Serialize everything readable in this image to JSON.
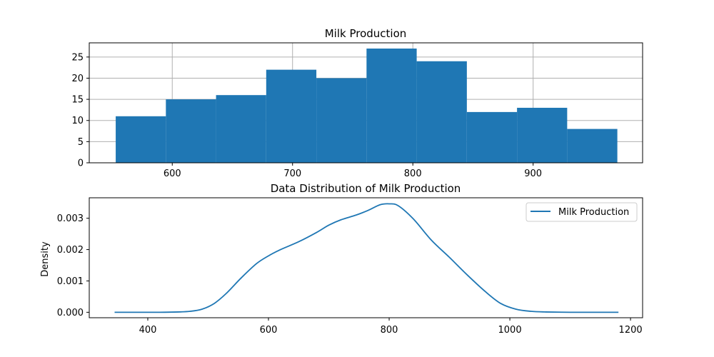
{
  "chart_data": [
    {
      "type": "bar",
      "subtype": "histogram",
      "title": "Milk Production",
      "xlabel": "",
      "ylabel": "",
      "xlim": [
        531,
        991
      ],
      "ylim": [
        0,
        28.35
      ],
      "grid": true,
      "bin_edges": [
        553,
        594.7,
        636.4,
        678.1,
        719.8,
        761.5,
        803.2,
        844.9,
        886.6,
        928.3,
        970
      ],
      "values": [
        11,
        15,
        16,
        22,
        20,
        27,
        24,
        12,
        13,
        8
      ],
      "x_ticks": [
        600,
        700,
        800,
        900
      ],
      "y_ticks": [
        0,
        5,
        10,
        15,
        20,
        25
      ],
      "color": "#1f77b4"
    },
    {
      "type": "line",
      "subtype": "density",
      "title": "Data Distribution of Milk Production",
      "xlabel": "",
      "ylabel": "Density",
      "xlim": [
        303,
        1220
      ],
      "ylim": [
        -0.000174,
        0.003653
      ],
      "grid": false,
      "legend_position": "top-right",
      "x_ticks": [
        400,
        600,
        800,
        1000,
        1200
      ],
      "y_ticks": [
        0.0,
        0.001,
        0.002,
        0.003
      ],
      "y_tick_labels": [
        "0.000",
        "0.001",
        "0.002",
        "0.003"
      ],
      "series": [
        {
          "name": "Milk Production",
          "color": "#1f77b4",
          "x": [
            345,
            380,
            420,
            450,
            470,
            490,
            510,
            530,
            555,
            580,
            600,
            620,
            650,
            680,
            700,
            720,
            745,
            765,
            785,
            800,
            815,
            840,
            870,
            900,
            930,
            960,
            985,
            1010,
            1035,
            1060,
            1100,
            1140,
            1180
          ],
          "y": [
            0.0,
            0.0,
            0.0,
            1e-05,
            3e-05,
            0.0001,
            0.00028,
            0.0006,
            0.0011,
            0.00155,
            0.0018,
            0.002,
            0.00225,
            0.00255,
            0.00278,
            0.00295,
            0.0031,
            0.00325,
            0.00343,
            0.00346,
            0.0034,
            0.00298,
            0.0023,
            0.00175,
            0.00118,
            0.00065,
            0.00028,
            0.0001,
            3e-05,
            1e-05,
            0.0,
            0.0,
            0.0
          ]
        }
      ]
    }
  ]
}
